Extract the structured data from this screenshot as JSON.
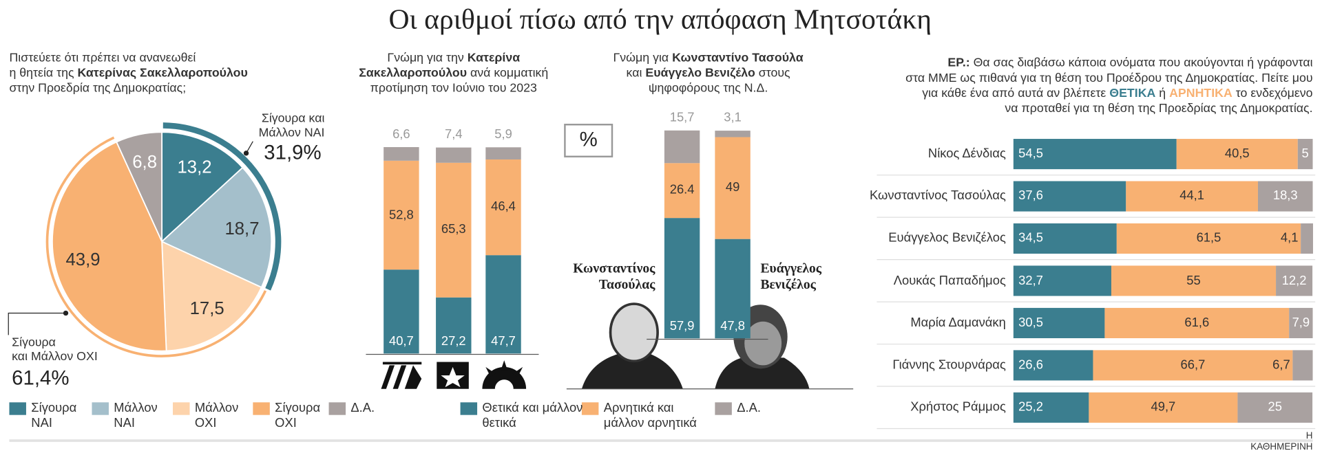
{
  "title": "Οι αριθμοί πίσω από την απόφαση Μητσοτάκη",
  "source": "Η ΚΑΘΗΜΕΡΙΝΗ",
  "chart_data": [
    {
      "type": "pie",
      "subtitle": [
        "Πιστεύετε ότι πρέπει να ανανεωθεί",
        "η θητεία της ",
        "Κατερίνας Σακελλαροπούλου",
        "στην Προεδρία της Δημοκρατίας;"
      ],
      "categories": [
        "Σίγουρα ΝΑΙ",
        "Μάλλον ΝΑΙ",
        "Μάλλον ΟΧΙ",
        "Σίγουρα ΟΧΙ",
        "Δ.Α."
      ],
      "values": [
        13.2,
        18.7,
        17.5,
        43.9,
        6.8
      ],
      "value_labels": [
        "13,2",
        "18,7",
        "17,5",
        "43,9",
        "6,8"
      ],
      "colors": [
        "#3b7e8f",
        "#a4bfcb",
        "#fdd3ab",
        "#f8b172",
        "#a9a1a0"
      ],
      "annotations": [
        {
          "text": "Σίγουρα και\nΜάλλον ΝΑΙ",
          "value": 31.9,
          "label": "31,9%",
          "color": "#3b7e8f"
        },
        {
          "text": "Σίγουρα\nκαι Μάλλον ΟΧΙ",
          "value": 61.4,
          "label": "61,4%",
          "color": "#f8b172"
        }
      ]
    },
    {
      "type": "stacked-bar",
      "subtitle": [
        "Γνώμη για την ",
        "Κατερίνα",
        "Σακελλαροπούλου",
        " ανά κομματική",
        "προτίμηση τον Ιούνιο του 2023"
      ],
      "categories": [
        null,
        null,
        null
      ],
      "ylim": [
        0,
        100
      ],
      "series": [
        {
          "name": "Θετικά και μάλλον θετικά",
          "color": "#3b7e8f",
          "values": [
            40.7,
            27.2,
            47.7
          ],
          "value_labels": [
            "40,7",
            "27,2",
            "47,7"
          ]
        },
        {
          "name": "Αρνητικά και μάλλον αρνητικά",
          "color": "#f8b172",
          "values": [
            52.8,
            65.3,
            46.4
          ],
          "value_labels": [
            "52,8",
            "65,3",
            "46,4"
          ]
        },
        {
          "name": "Δ.Α.",
          "color": "#a9a1a0",
          "values": [
            6.6,
            7.4,
            5.9
          ],
          "value_labels": [
            "6,6",
            "7,4",
            "5,9"
          ]
        }
      ]
    },
    {
      "type": "stacked-bar",
      "subtitle": [
        "Γνώμη για ",
        "Κωνσταντίνο Τασούλα",
        "και ",
        "Ευάγγελο Βενιζέλο",
        " στους",
        "ψηφοφόρους της Ν.Δ."
      ],
      "unit": "%",
      "categories": [
        "Κωνσταντίνος Τασούλας",
        "Ευάγγελος Βενιζέλος"
      ],
      "ylim": [
        0,
        100
      ],
      "series": [
        {
          "color": "#3b7e8f",
          "values": [
            57.9,
            47.8
          ],
          "value_labels": [
            "57,9",
            "47,8"
          ]
        },
        {
          "color": "#f8b172",
          "values": [
            26.4,
            49
          ]
        },
        {
          "color": "#a9a1a0",
          "values": [
            15.7,
            3.1
          ],
          "value_labels": [
            "15,7",
            "3,1"
          ]
        }
      ]
    },
    {
      "type": "horizontal-stacked-bar",
      "subtitle": [
        "ΕΡ.:",
        " Θα σας διαβάσω κάποια ονόματα που ακούγονται ή γράφονται",
        "στα ΜΜΕ ως πιθανά για τη θέση του Προέδρου της Δημοκρατίας. Πείτε μου",
        "για κάθε ένα από αυτά αν βλέπετε ",
        "ΘΕΤΙΚΑ",
        " ή ",
        "ΑΡΝΗΤΙΚΑ",
        " το ενδεχόμενο",
        "να προταθεί για τη θέση της Προεδρίας της Δημοκρατίας."
      ],
      "categories": [
        "Νίκος Δένδιας",
        "Κωνσταντίνος Τασούλας",
        "Ευάγγελος Βενιζέλος",
        "Λουκάς Παπαδήμος",
        "Μαρία Δαμανάκη",
        "Γιάννης Στουρνάρας",
        "Χρήστος Ράμμος"
      ],
      "xlim": [
        0,
        100
      ],
      "series": [
        {
          "color": "#3b7e8f",
          "values": [
            54.5,
            37.6,
            34.5,
            32.7,
            30.5,
            26.6,
            25.2
          ],
          "value_labels": [
            "54,5",
            "37,6",
            "34,5",
            "32,7",
            "30,5",
            "26,6",
            "25,2"
          ]
        },
        {
          "color": "#f8b172",
          "values": [
            40.5,
            44.1,
            61.5,
            55,
            61.6,
            66.7,
            49.7
          ],
          "value_labels": [
            "40,5",
            "44,1",
            "61,5",
            "55",
            "61,6",
            "66,7",
            "49,7"
          ]
        },
        {
          "color": "#a9a1a0",
          "values": [
            5,
            18.3,
            4.1,
            12.2,
            7.9,
            6.7,
            25
          ],
          "value_labels": [
            "5",
            "18,3",
            "4,1",
            "12,2",
            "7,9",
            "6,7",
            "25"
          ]
        }
      ]
    }
  ]
}
